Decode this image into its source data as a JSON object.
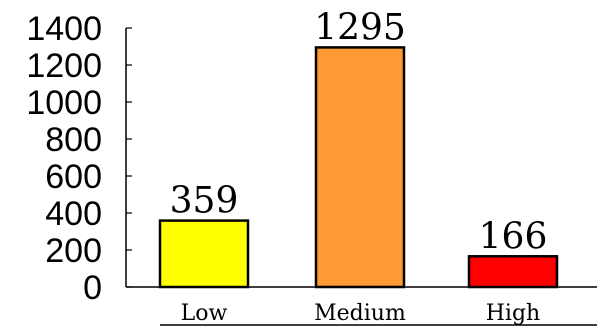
{
  "chart_data": {
    "type": "bar",
    "title": "",
    "xlabel": "",
    "ylabel": "",
    "categories": [
      "Low",
      "Medium",
      "High"
    ],
    "values": [
      359,
      1295,
      166
    ],
    "data_labels": [
      "359",
      "1295",
      "166"
    ],
    "colors": [
      "#ffff00",
      "#ff9933",
      "#ff0000"
    ],
    "ylim": [
      0,
      1400
    ],
    "yticks": [
      0,
      200,
      400,
      600,
      800,
      1000,
      1200,
      1400
    ],
    "ytick_labels": [
      "0",
      "200",
      "400",
      "600",
      "800",
      "1000",
      "1200",
      "1400"
    ],
    "grid": false,
    "legend": "none"
  }
}
